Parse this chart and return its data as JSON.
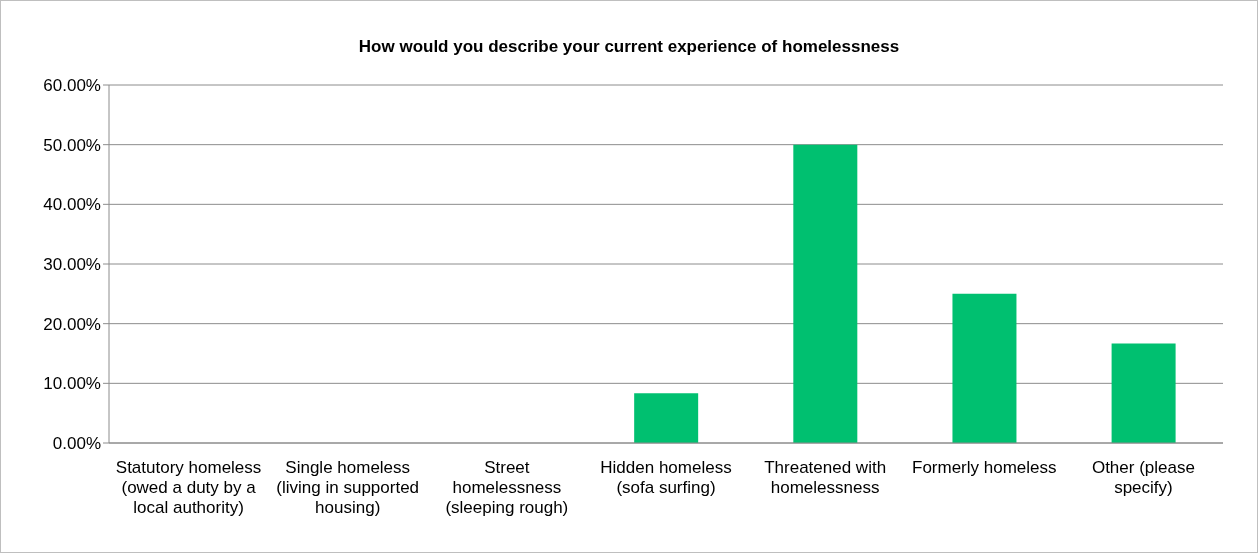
{
  "chart_data": {
    "type": "bar",
    "title": "How would you describe your current experience of homelessness",
    "categories": [
      "Statutory homeless (owed a duty by a local authority)",
      "Single homeless (living in supported housing)",
      "Street homelessness (sleeping rough)",
      "Hidden homeless (sofa surfing)",
      "Threatened with homelessness",
      "Formerly homeless",
      "Other (please specify)"
    ],
    "values": [
      0,
      0,
      0,
      8.33,
      50,
      25,
      16.67
    ],
    "color": "#00c070",
    "ylim": [
      0,
      60
    ],
    "yticks": [
      {
        "value": 0,
        "label": "0.00%"
      },
      {
        "value": 10,
        "label": "10.00%"
      },
      {
        "value": 20,
        "label": "20.00%"
      },
      {
        "value": 30,
        "label": "30.00%"
      },
      {
        "value": 40,
        "label": "40.00%"
      },
      {
        "value": 50,
        "label": "50.00%"
      },
      {
        "value": 60,
        "label": "60.00%"
      }
    ],
    "grid": "y"
  }
}
